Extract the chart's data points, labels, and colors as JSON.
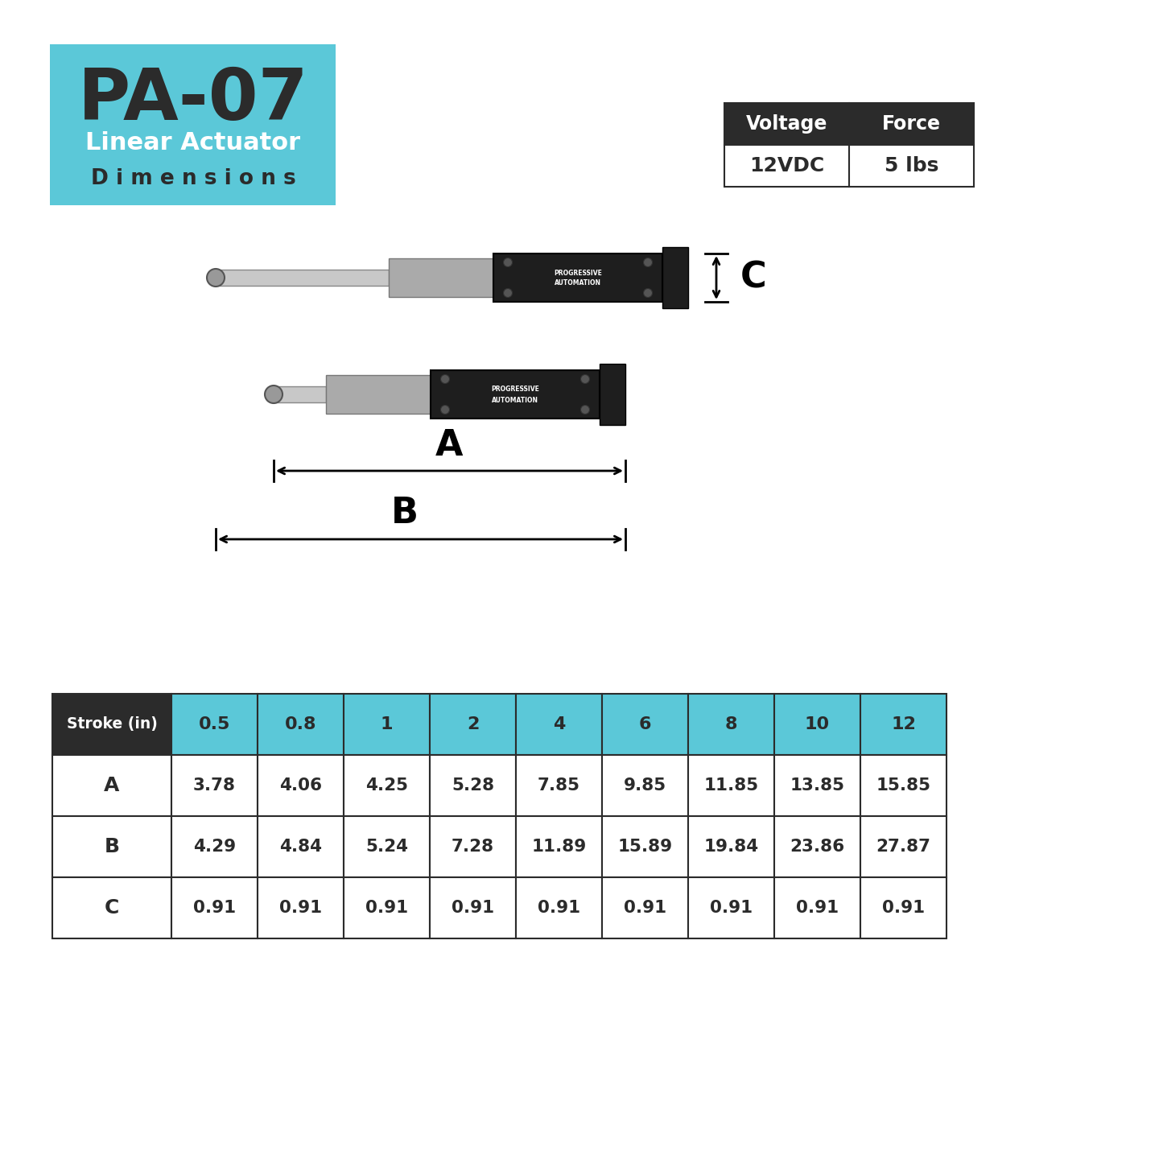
{
  "title": "PA-07",
  "subtitle1": "Linear Actuator",
  "subtitle2": "D i m e n s i o n s",
  "bg_color": "#ffffff",
  "header_bg": "#5bc8d8",
  "header_text_color1": "#2b2b2b",
  "header_text_color2": "#ffffff",
  "voltage_label": "Voltage",
  "force_label": "Force",
  "voltage_value": "12VDC",
  "force_value": "5 lbs",
  "table_header_bg": "#2b2b2b",
  "table_header_fg": "#ffffff",
  "table_cell_bg": "#5bc8d8",
  "table_cell_fg": "#2b2b2b",
  "stroke_col": "Stroke (in)",
  "strokes": [
    "0.5",
    "0.8",
    "1",
    "2",
    "4",
    "6",
    "8",
    "10",
    "12"
  ],
  "rows": [
    {
      "label": "A",
      "values": [
        "3.78",
        "4.06",
        "4.25",
        "5.28",
        "7.85",
        "9.85",
        "11.85",
        "13.85",
        "15.85"
      ]
    },
    {
      "label": "B",
      "values": [
        "4.29",
        "4.84",
        "5.24",
        "7.28",
        "11.89",
        "15.89",
        "19.84",
        "23.86",
        "27.87"
      ]
    },
    {
      "label": "C",
      "values": [
        "0.91",
        "0.91",
        "0.91",
        "0.91",
        "0.91",
        "0.91",
        "0.91",
        "0.91",
        "0.91"
      ]
    }
  ],
  "dim_A_label": "A",
  "dim_B_label": "B",
  "dim_C_label": "C"
}
